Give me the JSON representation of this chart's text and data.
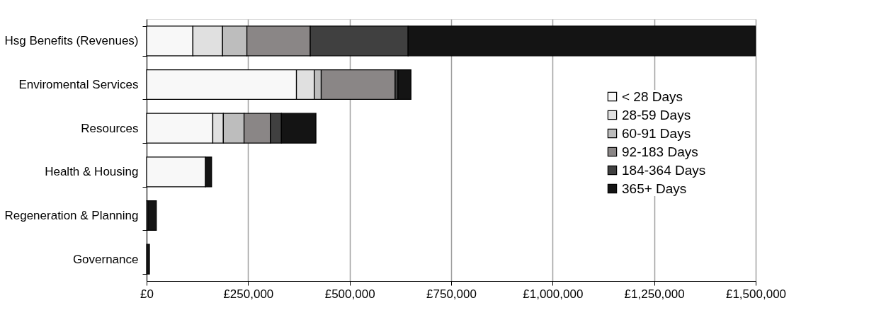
{
  "chart_data": {
    "type": "bar",
    "orientation": "horizontal",
    "stacked": true,
    "categories": [
      "Hsg Benefits (Revenues)",
      "Enviromental Services",
      "Resources",
      "Health & Housing",
      "Regeneration & Planning",
      "Governance"
    ],
    "series": [
      {
        "name": "< 28 Days",
        "color": "#f8f8f8",
        "values": [
          114000,
          369000,
          163000,
          145000,
          3000,
          0
        ]
      },
      {
        "name": "28-59 Days",
        "color": "#e0e0e0",
        "values": [
          73000,
          44000,
          26000,
          0,
          0,
          0
        ]
      },
      {
        "name": "60-91 Days",
        "color": "#bdbdbd",
        "values": [
          60000,
          17000,
          51000,
          0,
          0,
          0
        ]
      },
      {
        "name": "92-183 Days",
        "color": "#8a8686",
        "values": [
          156000,
          182000,
          65000,
          0,
          0,
          0
        ]
      },
      {
        "name": "184-364 Days",
        "color": "#404040",
        "values": [
          241000,
          7000,
          27000,
          0,
          0,
          0
        ]
      },
      {
        "name": "365+ Days",
        "color": "#141414",
        "values": [
          855000,
          32000,
          85000,
          15000,
          21000,
          7000
        ]
      }
    ],
    "xlim": [
      0,
      1500000
    ],
    "xticks": [
      {
        "value": 0,
        "label": "£0"
      },
      {
        "value": 250000,
        "label": "£250,000"
      },
      {
        "value": 500000,
        "label": "£500,000"
      },
      {
        "value": 750000,
        "label": "£750,000"
      },
      {
        "value": 1000000,
        "label": "£1,000,000"
      },
      {
        "value": 1250000,
        "label": "£1,250,000"
      },
      {
        "value": 1500000,
        "label": "£1,500,000"
      }
    ],
    "grid": "x",
    "legend": "right"
  }
}
